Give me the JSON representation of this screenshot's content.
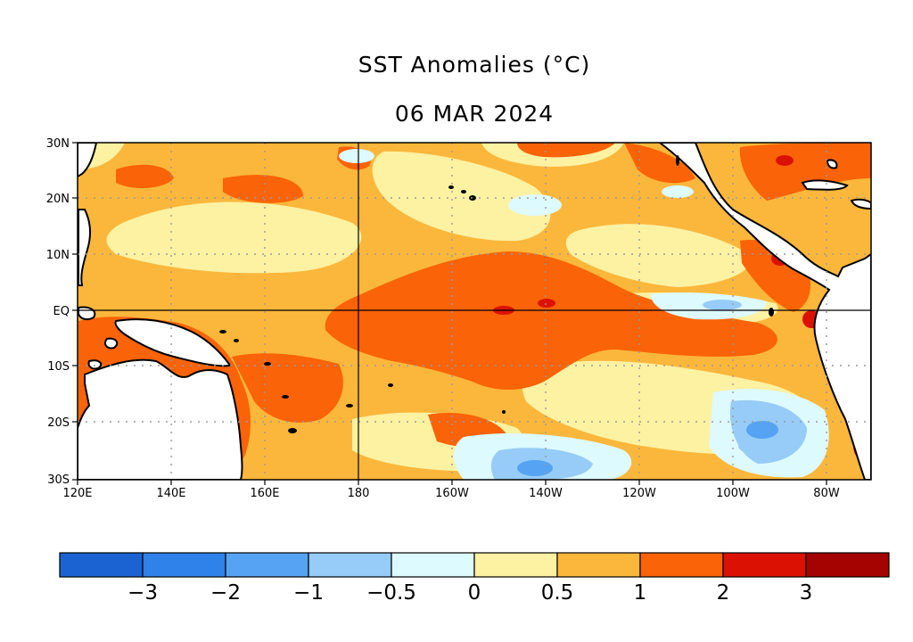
{
  "title": "SST Anomalies (°C)",
  "date": "06 MAR 2024",
  "lat_labels": [
    "30N",
    "20N",
    "10N",
    "EQ",
    "10S",
    "20S",
    "30S"
  ],
  "lon_labels": [
    "120E",
    "140E",
    "160E",
    "180",
    "160W",
    "140W",
    "120W",
    "100W",
    "80W"
  ],
  "colorbar": {
    "colors": [
      "#1b63d3",
      "#2e82ea",
      "#55a3f2",
      "#96ccf7",
      "#ddfaff",
      "#fdf1a2",
      "#fbb73b",
      "#fa6308",
      "#db1203",
      "#a40302"
    ],
    "labels": [
      "−3",
      "−2",
      "−1",
      "−0.5",
      "0",
      "0.5",
      "1",
      "2",
      "3"
    ]
  },
  "land_color": "#ffffff"
}
